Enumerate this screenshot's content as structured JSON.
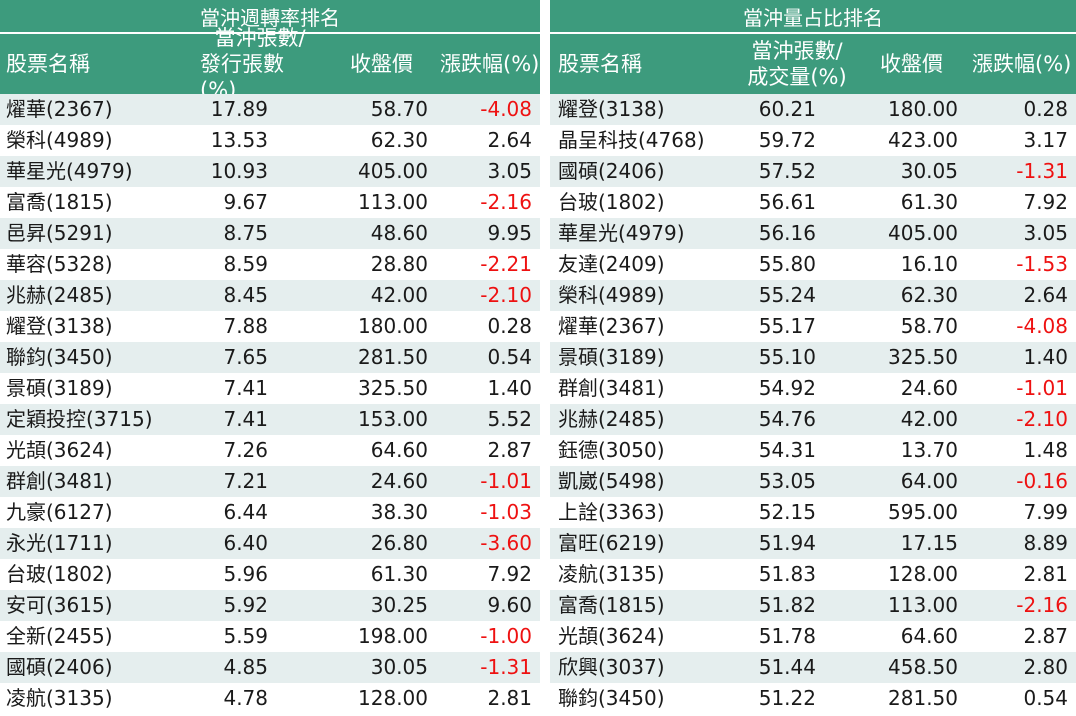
{
  "left": {
    "title": "當沖週轉率排名",
    "headers": {
      "name": "股票名稱",
      "metric_line1": "當沖張數/",
      "metric_line2": "發行張數(%)",
      "close": "收盤價",
      "change": "漲跌幅(%)"
    },
    "rows": [
      {
        "name": "燿華(2367)",
        "metric": "17.89",
        "close": "58.70",
        "change": "-4.08"
      },
      {
        "name": "榮科(4989)",
        "metric": "13.53",
        "close": "62.30",
        "change": "2.64"
      },
      {
        "name": "華星光(4979)",
        "metric": "10.93",
        "close": "405.00",
        "change": "3.05"
      },
      {
        "name": "富喬(1815)",
        "metric": "9.67",
        "close": "113.00",
        "change": "-2.16"
      },
      {
        "name": "邑昇(5291)",
        "metric": "8.75",
        "close": "48.60",
        "change": "9.95"
      },
      {
        "name": "華容(5328)",
        "metric": "8.59",
        "close": "28.80",
        "change": "-2.21"
      },
      {
        "name": "兆赫(2485)",
        "metric": "8.45",
        "close": "42.00",
        "change": "-2.10"
      },
      {
        "name": "耀登(3138)",
        "metric": "7.88",
        "close": "180.00",
        "change": "0.28"
      },
      {
        "name": "聯鈞(3450)",
        "metric": "7.65",
        "close": "281.50",
        "change": "0.54"
      },
      {
        "name": "景碩(3189)",
        "metric": "7.41",
        "close": "325.50",
        "change": "1.40"
      },
      {
        "name": "定穎投控(3715)",
        "metric": "7.41",
        "close": "153.00",
        "change": "5.52"
      },
      {
        "name": "光頡(3624)",
        "metric": "7.26",
        "close": "64.60",
        "change": "2.87"
      },
      {
        "name": "群創(3481)",
        "metric": "7.21",
        "close": "24.60",
        "change": "-1.01"
      },
      {
        "name": "九豪(6127)",
        "metric": "6.44",
        "close": "38.30",
        "change": "-1.03"
      },
      {
        "name": "永光(1711)",
        "metric": "6.40",
        "close": "26.80",
        "change": "-3.60"
      },
      {
        "name": "台玻(1802)",
        "metric": "5.96",
        "close": "61.30",
        "change": "7.92"
      },
      {
        "name": "安可(3615)",
        "metric": "5.92",
        "close": "30.25",
        "change": "9.60"
      },
      {
        "name": "全新(2455)",
        "metric": "5.59",
        "close": "198.00",
        "change": "-1.00"
      },
      {
        "name": "國碩(2406)",
        "metric": "4.85",
        "close": "30.05",
        "change": "-1.31"
      },
      {
        "name": "凌航(3135)",
        "metric": "4.78",
        "close": "128.00",
        "change": "2.81"
      }
    ]
  },
  "right": {
    "title": "當沖量占比排名",
    "headers": {
      "name": "股票名稱",
      "metric_line1": "當沖張數/",
      "metric_line2": "成交量(%)",
      "close": "收盤價",
      "change": "漲跌幅(%)"
    },
    "rows": [
      {
        "name": "耀登(3138)",
        "metric": "60.21",
        "close": "180.00",
        "change": "0.28"
      },
      {
        "name": "晶呈科技(4768)",
        "metric": "59.72",
        "close": "423.00",
        "change": "3.17"
      },
      {
        "name": "國碩(2406)",
        "metric": "57.52",
        "close": "30.05",
        "change": "-1.31"
      },
      {
        "name": "台玻(1802)",
        "metric": "56.61",
        "close": "61.30",
        "change": "7.92"
      },
      {
        "name": "華星光(4979)",
        "metric": "56.16",
        "close": "405.00",
        "change": "3.05"
      },
      {
        "name": "友達(2409)",
        "metric": "55.80",
        "close": "16.10",
        "change": "-1.53"
      },
      {
        "name": "榮科(4989)",
        "metric": "55.24",
        "close": "62.30",
        "change": "2.64"
      },
      {
        "name": "燿華(2367)",
        "metric": "55.17",
        "close": "58.70",
        "change": "-4.08"
      },
      {
        "name": "景碩(3189)",
        "metric": "55.10",
        "close": "325.50",
        "change": "1.40"
      },
      {
        "name": "群創(3481)",
        "metric": "54.92",
        "close": "24.60",
        "change": "-1.01"
      },
      {
        "name": "兆赫(2485)",
        "metric": "54.76",
        "close": "42.00",
        "change": "-2.10"
      },
      {
        "name": "鈺德(3050)",
        "metric": "54.31",
        "close": "13.70",
        "change": "1.48"
      },
      {
        "name": "凱崴(5498)",
        "metric": "53.05",
        "close": "64.00",
        "change": "-0.16"
      },
      {
        "name": "上詮(3363)",
        "metric": "52.15",
        "close": "595.00",
        "change": "7.99"
      },
      {
        "name": "富旺(6219)",
        "metric": "51.94",
        "close": "17.15",
        "change": "8.89"
      },
      {
        "name": "凌航(3135)",
        "metric": "51.83",
        "close": "128.00",
        "change": "2.81"
      },
      {
        "name": "富喬(1815)",
        "metric": "51.82",
        "close": "113.00",
        "change": "-2.16"
      },
      {
        "name": "光頡(3624)",
        "metric": "51.78",
        "close": "64.60",
        "change": "2.87"
      },
      {
        "name": "欣興(3037)",
        "metric": "51.44",
        "close": "458.50",
        "change": "2.80"
      },
      {
        "name": "聯鈞(3450)",
        "metric": "51.22",
        "close": "281.50",
        "change": "0.54"
      }
    ]
  },
  "colors": {
    "header_bg": "#3d9b7d",
    "row_shade": "#e5eeee",
    "negative": "#ee1111",
    "text": "#1a1a1a"
  }
}
